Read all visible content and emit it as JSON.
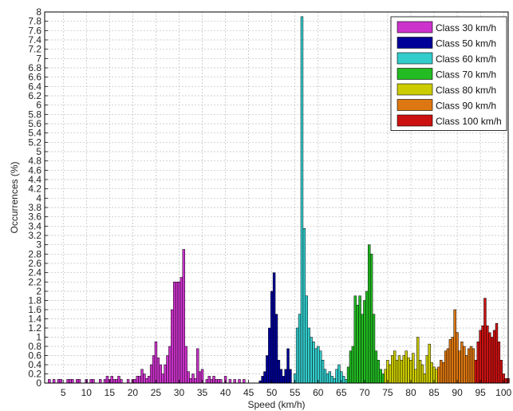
{
  "chart_data": {
    "type": "bar",
    "title": "",
    "xlabel": "Speed (km/h)",
    "ylabel": "Occurrences (%)",
    "xlim": [
      1,
      101
    ],
    "ylim": [
      0,
      8
    ],
    "x_ticks": [
      5,
      10,
      15,
      20,
      25,
      30,
      35,
      40,
      45,
      50,
      55,
      60,
      65,
      70,
      75,
      80,
      85,
      90,
      95,
      100
    ],
    "y_ticks": [
      0,
      0.2,
      0.4,
      0.6,
      0.8,
      1,
      1.2,
      1.4,
      1.6,
      1.8,
      2,
      2.2,
      2.4,
      2.6,
      2.8,
      3,
      3.2,
      3.4,
      3.6,
      3.8,
      4,
      4.2,
      4.4,
      4.6,
      4.8,
      5,
      5.2,
      5.4,
      5.6,
      5.8,
      6,
      6.2,
      6.4,
      6.6,
      6.8,
      7,
      7.2,
      7.4,
      7.6,
      7.8,
      8
    ],
    "y_tick_labels": [
      "0",
      "0.2",
      "0.4",
      "0.6",
      "0.8",
      "1",
      "1.2",
      "1.4",
      "1.6",
      "1.8",
      "2",
      "2.2",
      "2.4",
      "2.6",
      "2.8",
      "3",
      "3.2",
      "3.4",
      "3.6",
      "3.8",
      "4",
      "4.2",
      "4.4",
      "4.6",
      "4.8",
      "5",
      "5.2",
      "5.4",
      "5.6",
      "5.8",
      "6",
      "6.2",
      "6.4",
      "6.6",
      "6.8",
      "7",
      "7.2",
      "7.4",
      "7.6",
      "7.8",
      "8"
    ],
    "y_scale": "nonlinear (expanded below 2, compressed above)",
    "grid": true,
    "legend_position": "top-right",
    "bar_width": 0.5,
    "series": [
      {
        "name": "Class 30 km/h",
        "color": "#cc33cc",
        "points": [
          [
            2,
            0.08
          ],
          [
            3,
            0.08
          ],
          [
            4,
            0.08
          ],
          [
            4.5,
            0.08
          ],
          [
            6,
            0.08
          ],
          [
            6.5,
            0.08
          ],
          [
            7,
            0.08
          ],
          [
            8,
            0.08
          ],
          [
            8.5,
            0.08
          ],
          [
            10,
            0.08
          ],
          [
            11,
            0.08
          ],
          [
            11.5,
            0.08
          ],
          [
            13,
            0.08
          ],
          [
            14,
            0.08
          ],
          [
            14.5,
            0.15
          ],
          [
            15,
            0.08
          ],
          [
            15.5,
            0.15
          ],
          [
            16,
            0.08
          ],
          [
            16.5,
            0.08
          ],
          [
            17,
            0.15
          ],
          [
            17.5,
            0.08
          ],
          [
            19,
            0.08
          ],
          [
            20,
            0.08
          ],
          [
            20.5,
            0.08
          ],
          [
            21,
            0.15
          ],
          [
            21.5,
            0.15
          ],
          [
            22,
            0.3
          ],
          [
            22.5,
            0.2
          ],
          [
            23,
            0.1
          ],
          [
            23.5,
            0.15
          ],
          [
            24,
            0.4
          ],
          [
            24.5,
            0.6
          ],
          [
            25,
            0.9
          ],
          [
            25.5,
            0.55
          ],
          [
            26,
            0.4
          ],
          [
            26.5,
            0.2
          ],
          [
            27,
            0.4
          ],
          [
            27.5,
            0.6
          ],
          [
            28,
            0.8
          ],
          [
            28.5,
            1.6
          ],
          [
            29,
            2.2
          ],
          [
            29.5,
            2.2
          ],
          [
            30,
            2.2
          ],
          [
            30.5,
            2.3
          ],
          [
            31,
            2.9
          ],
          [
            31.5,
            0.8
          ],
          [
            32,
            0.25
          ],
          [
            32.5,
            0.1
          ],
          [
            33,
            0.2
          ],
          [
            33.5,
            0.1
          ],
          [
            34,
            0.75
          ],
          [
            34.5,
            0.25
          ],
          [
            35,
            0.3
          ],
          [
            36,
            0.08
          ],
          [
            36.5,
            0.15
          ],
          [
            37,
            0.08
          ],
          [
            37.5,
            0.15
          ],
          [
            38,
            0.08
          ],
          [
            38.5,
            0.08
          ],
          [
            39,
            0.08
          ],
          [
            40,
            0.15
          ],
          [
            41,
            0.08
          ],
          [
            42,
            0.08
          ],
          [
            43,
            0.08
          ],
          [
            44,
            0.08
          ]
        ]
      },
      {
        "name": "Class 50 km/h",
        "color": "#000099",
        "points": [
          [
            47.5,
            0.05
          ],
          [
            48,
            0.15
          ],
          [
            48.5,
            0.25
          ],
          [
            49,
            0.6
          ],
          [
            49.5,
            1.2
          ],
          [
            50,
            2.0
          ],
          [
            50.5,
            2.4
          ],
          [
            51,
            1.5
          ],
          [
            51.5,
            0.5
          ],
          [
            52,
            0.3
          ],
          [
            52.5,
            0.15
          ],
          [
            53,
            0.3
          ],
          [
            53.5,
            0.75
          ],
          [
            54,
            0.3
          ]
        ]
      },
      {
        "name": "Class 60 km/h",
        "color": "#33cccc",
        "points": [
          [
            55,
            0.2
          ],
          [
            55.5,
            1.2
          ],
          [
            56,
            1.5
          ],
          [
            56.5,
            7.9
          ],
          [
            57,
            3.35
          ],
          [
            57.5,
            1.9
          ],
          [
            58,
            1.2
          ],
          [
            58.5,
            1.0
          ],
          [
            59,
            0.9
          ],
          [
            59.5,
            0.75
          ],
          [
            60,
            0.8
          ],
          [
            60.5,
            0.7
          ],
          [
            61,
            0.5
          ],
          [
            61.5,
            0.3
          ],
          [
            62,
            0.2
          ],
          [
            62.5,
            0.25
          ],
          [
            63,
            0.15
          ],
          [
            63.5,
            0.1
          ],
          [
            64,
            0.3
          ],
          [
            64.5,
            0.4
          ],
          [
            65,
            0.25
          ],
          [
            65.5,
            0.15
          ],
          [
            66,
            0.08
          ]
        ]
      },
      {
        "name": "Class 70 km/h",
        "color": "#22bb22",
        "points": [
          [
            66.5,
            0.35
          ],
          [
            67,
            0.7
          ],
          [
            67.5,
            0.8
          ],
          [
            68,
            1.9
          ],
          [
            68.5,
            1.7
          ],
          [
            69,
            1.9
          ],
          [
            69.5,
            1.5
          ],
          [
            70,
            1.8
          ],
          [
            70.5,
            2.0
          ],
          [
            71,
            3.0
          ],
          [
            71.5,
            2.8
          ],
          [
            72,
            1.5
          ],
          [
            72.5,
            0.7
          ],
          [
            73,
            0.5
          ],
          [
            73.5,
            0.3
          ],
          [
            74,
            0.2
          ]
        ]
      },
      {
        "name": "Class 80 km/h",
        "color": "#cccc00",
        "points": [
          [
            74.5,
            0.3
          ],
          [
            75,
            0.5
          ],
          [
            75.5,
            0.4
          ],
          [
            76,
            0.6
          ],
          [
            76.5,
            0.7
          ],
          [
            77,
            0.5
          ],
          [
            77.5,
            0.6
          ],
          [
            78,
            0.5
          ],
          [
            78.5,
            0.6
          ],
          [
            79,
            0.7
          ],
          [
            79.5,
            0.55
          ],
          [
            80,
            0.5
          ],
          [
            80.5,
            0.65
          ],
          [
            81,
            0.3
          ],
          [
            81.5,
            1.0
          ],
          [
            82,
            0.5
          ],
          [
            82.5,
            0.4
          ],
          [
            83,
            0.2
          ],
          [
            83.5,
            0.6
          ],
          [
            84,
            0.85
          ],
          [
            84.5,
            0.45
          ],
          [
            85,
            0.35
          ],
          [
            85.5,
            0.3
          ]
        ]
      },
      {
        "name": "Class 90 km/h",
        "color": "#dd7711",
        "points": [
          [
            86,
            0.35
          ],
          [
            86.5,
            0.5
          ],
          [
            87,
            0.45
          ],
          [
            87.5,
            0.7
          ],
          [
            88,
            0.75
          ],
          [
            88.5,
            0.95
          ],
          [
            89,
            1.0
          ],
          [
            89.5,
            1.6
          ],
          [
            90,
            1.1
          ],
          [
            90.5,
            0.7
          ],
          [
            91,
            0.9
          ],
          [
            91.5,
            0.8
          ],
          [
            92,
            0.6
          ],
          [
            92.5,
            0.75
          ],
          [
            93,
            0.8
          ],
          [
            93.5,
            0.75
          ]
        ]
      },
      {
        "name": "Class 100 km/h",
        "color": "#cc1111",
        "points": [
          [
            94,
            0.5
          ],
          [
            94.5,
            0.9
          ],
          [
            95,
            1.15
          ],
          [
            95.5,
            1.25
          ],
          [
            96,
            1.85
          ],
          [
            96.5,
            1.25
          ],
          [
            97,
            1.1
          ],
          [
            97.5,
            1.0
          ],
          [
            98,
            1.15
          ],
          [
            98.5,
            1.3
          ],
          [
            99,
            0.9
          ],
          [
            99.5,
            0.5
          ],
          [
            100,
            0.2
          ],
          [
            100.5,
            0.1
          ],
          [
            101,
            0.1
          ]
        ]
      }
    ]
  }
}
